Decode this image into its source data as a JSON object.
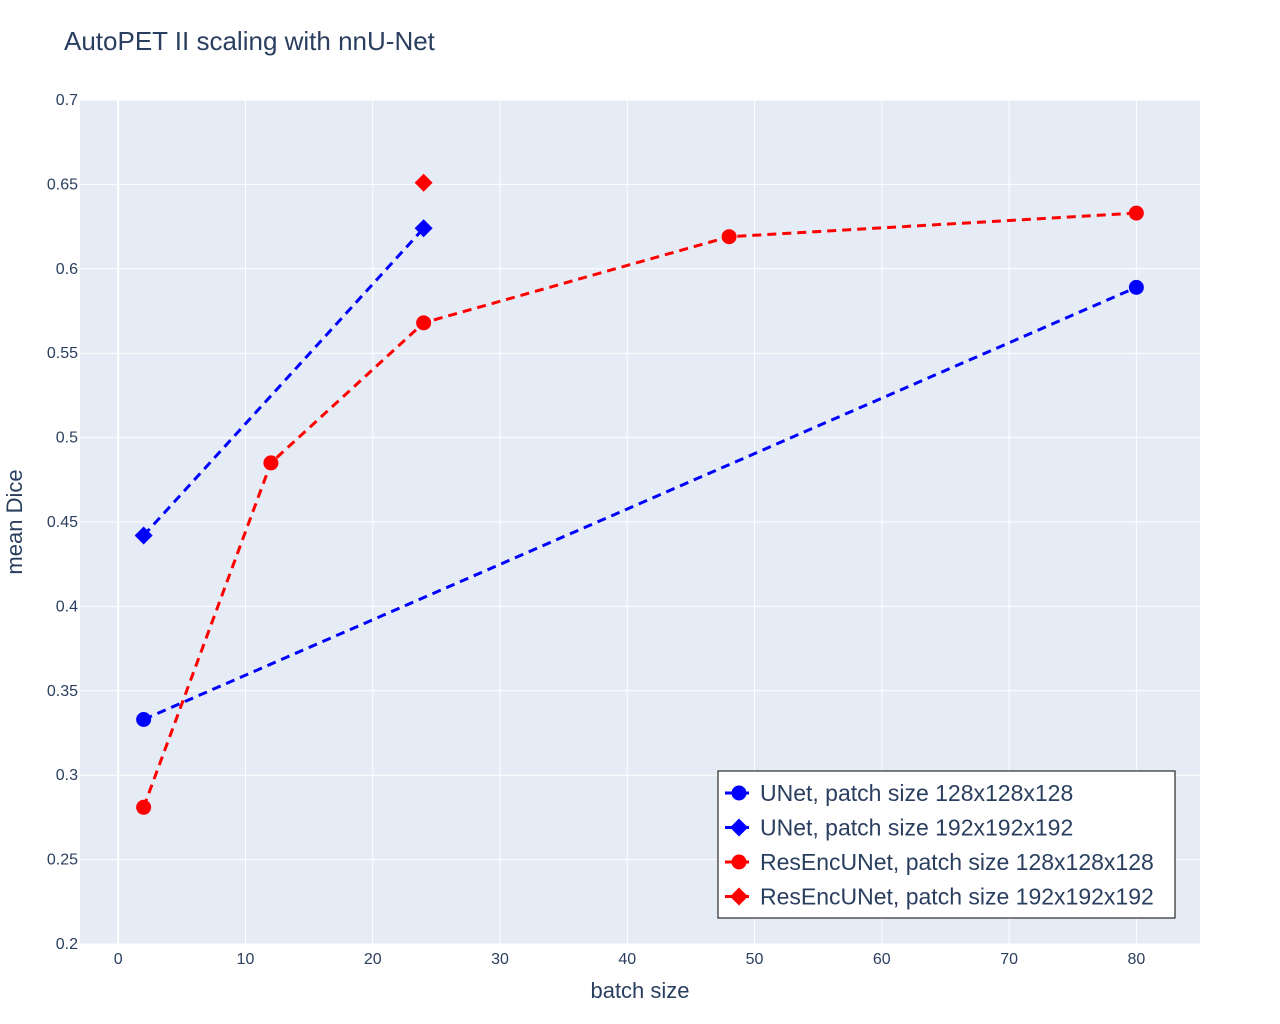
{
  "chart_data": {
    "type": "line",
    "title": "AutoPET II scaling with nnU-Net",
    "xlabel": "batch size",
    "ylabel": "mean Dice",
    "xlim": [
      -3,
      85
    ],
    "ylim": [
      0.2,
      0.7
    ],
    "xticks": [
      0,
      10,
      20,
      30,
      40,
      50,
      60,
      70,
      80
    ],
    "xtick_labels": [
      "0",
      "10",
      "20",
      "30",
      "40",
      "50",
      "60",
      "70",
      "80"
    ],
    "yticks": [
      0.2,
      0.25,
      0.3,
      0.35,
      0.4,
      0.45,
      0.5,
      0.55,
      0.6,
      0.65,
      0.7
    ],
    "ytick_labels": [
      "0.2",
      "0.25",
      "0.3",
      "0.35",
      "0.4",
      "0.45",
      "0.5",
      "0.55",
      "0.6",
      "0.65",
      "0.7"
    ],
    "grid": true,
    "legend_position": "bottom-right",
    "series": [
      {
        "name": "UNet, patch size 128x128x128",
        "color": "#0000ff",
        "marker": "circle",
        "line_style": "dashed",
        "x": [
          2,
          80
        ],
        "y": [
          0.333,
          0.589
        ]
      },
      {
        "name": "UNet, patch size 192x192x192",
        "color": "#0000ff",
        "marker": "diamond",
        "line_style": "dashed",
        "x": [
          2,
          24
        ],
        "y": [
          0.442,
          0.624
        ]
      },
      {
        "name": "ResEncUNet, patch size 128x128x128",
        "color": "#ff0000",
        "marker": "circle",
        "line_style": "dashed",
        "x": [
          2,
          12,
          24,
          48,
          80
        ],
        "y": [
          0.281,
          0.485,
          0.568,
          0.619,
          0.633
        ]
      },
      {
        "name": "ResEncUNet, patch size 192x192x192",
        "color": "#ff0000",
        "marker": "diamond",
        "line_style": "dashed",
        "x": [
          24
        ],
        "y": [
          0.651
        ]
      }
    ]
  },
  "colors": {
    "plot_background": "#e5ecf6",
    "grid": "#ffffff",
    "text": "#2a3f5f"
  }
}
